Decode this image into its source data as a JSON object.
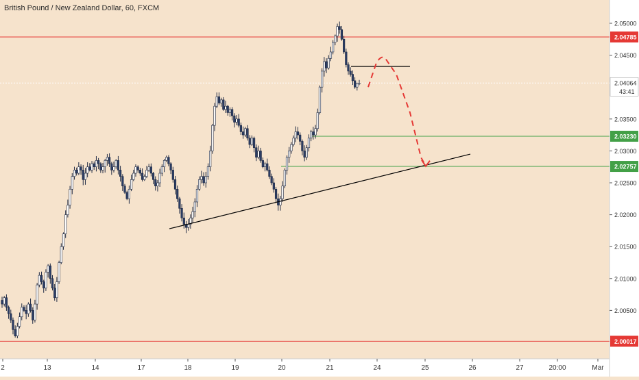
{
  "title": "British Pound / New Zealand Dollar, 60, FXCM",
  "price_scale": {
    "ticks": [
      "2.05000",
      "2.04500",
      "2.03500",
      "2.03000",
      "2.02500",
      "2.02000",
      "2.01500",
      "2.01000",
      "2.00500"
    ],
    "labels": [
      {
        "text": "2.04785",
        "value": 2.04785,
        "color": "#e53935"
      },
      {
        "text": "2.03230",
        "value": 2.0323,
        "color": "#43a047"
      },
      {
        "text": "2.02757",
        "value": 2.02757,
        "color": "#43a047"
      },
      {
        "text": "2.00017",
        "value": 2.00017,
        "color": "#e53935"
      }
    ],
    "current_price": "2.04064",
    "countdown": "43:41"
  },
  "time_axis": [
    "2",
    "13",
    "14",
    "17",
    "18",
    "19",
    "20",
    "21",
    "24",
    "25",
    "26",
    "27",
    "20:00",
    "Mar"
  ],
  "chart_data": {
    "type": "candlestick",
    "title": "British Pound / New Zealand Dollar, 60, FXCM",
    "ylim": [
      1.9975,
      2.0528
    ],
    "horizontal_levels": [
      {
        "value": 2.04785,
        "color": "#e53935"
      },
      {
        "value": 2.0323,
        "color": "#43a047"
      },
      {
        "value": 2.02757,
        "color": "#43a047"
      },
      {
        "value": 2.00017,
        "color": "#e53935"
      }
    ],
    "current_price": 2.04064,
    "trendline": {
      "from": 2.0178,
      "to": 2.0295
    },
    "candles_close": [
      2.006,
      2.007,
      2.0055,
      2.0045,
      2.0035,
      2.002,
      2.001,
      2.0025,
      2.004,
      2.0055,
      2.005,
      2.0045,
      2.006,
      2.005,
      2.0035,
      2.006,
      2.009,
      2.0105,
      2.0095,
      2.0085,
      2.011,
      2.012,
      2.01,
      2.0085,
      2.007,
      2.0095,
      2.0125,
      2.015,
      2.017,
      2.02,
      2.0215,
      2.024,
      2.026,
      2.027,
      2.0265,
      2.0275,
      2.027,
      2.0255,
      2.0265,
      2.0275,
      2.027,
      2.028,
      2.0275,
      2.0285,
      2.028,
      2.027,
      2.0275,
      2.0285,
      2.029,
      2.028,
      2.027,
      2.0275,
      2.0285,
      2.027,
      2.026,
      2.0245,
      2.0235,
      2.0225,
      2.024,
      2.0255,
      2.0265,
      2.0275,
      2.027,
      2.0265,
      2.0255,
      2.026,
      2.027,
      2.0275,
      2.0265,
      2.0255,
      2.0245,
      2.025,
      2.0265,
      2.0275,
      2.0285,
      2.029,
      2.028,
      2.027,
      2.0255,
      2.024,
      2.0225,
      2.021,
      2.0195,
      2.0185,
      2.018,
      2.0185,
      2.0195,
      2.0205,
      2.022,
      2.024,
      2.0255,
      2.026,
      2.025,
      2.026,
      2.0275,
      2.03,
      2.034,
      2.037,
      2.0385,
      2.0375,
      2.038,
      2.0365,
      2.037,
      2.036,
      2.0365,
      2.0355,
      2.0345,
      2.035,
      2.034,
      2.033,
      2.0325,
      2.0335,
      2.032,
      2.031,
      2.032,
      2.0305,
      2.029,
      2.03,
      2.0285,
      2.0275,
      2.028,
      2.027,
      2.026,
      2.025,
      2.024,
      2.0225,
      2.0215,
      2.0225,
      2.0245,
      2.027,
      2.029,
      2.03,
      2.031,
      2.032,
      2.033,
      2.0325,
      2.0315,
      2.03,
      2.029,
      2.0305,
      2.032,
      2.033,
      2.0325,
      2.0335,
      2.036,
      2.04,
      2.0425,
      2.044,
      2.043,
      2.0445,
      2.0455,
      2.047,
      2.048,
      2.0495,
      2.049,
      2.0475,
      2.0455,
      2.0435,
      2.0425,
      2.042,
      2.041,
      2.04,
      2.0405,
      2.0406
    ],
    "projection_path": [
      2.04,
      2.0435,
      2.0445,
      2.042,
      2.036,
      2.029,
      2.0276
    ]
  }
}
